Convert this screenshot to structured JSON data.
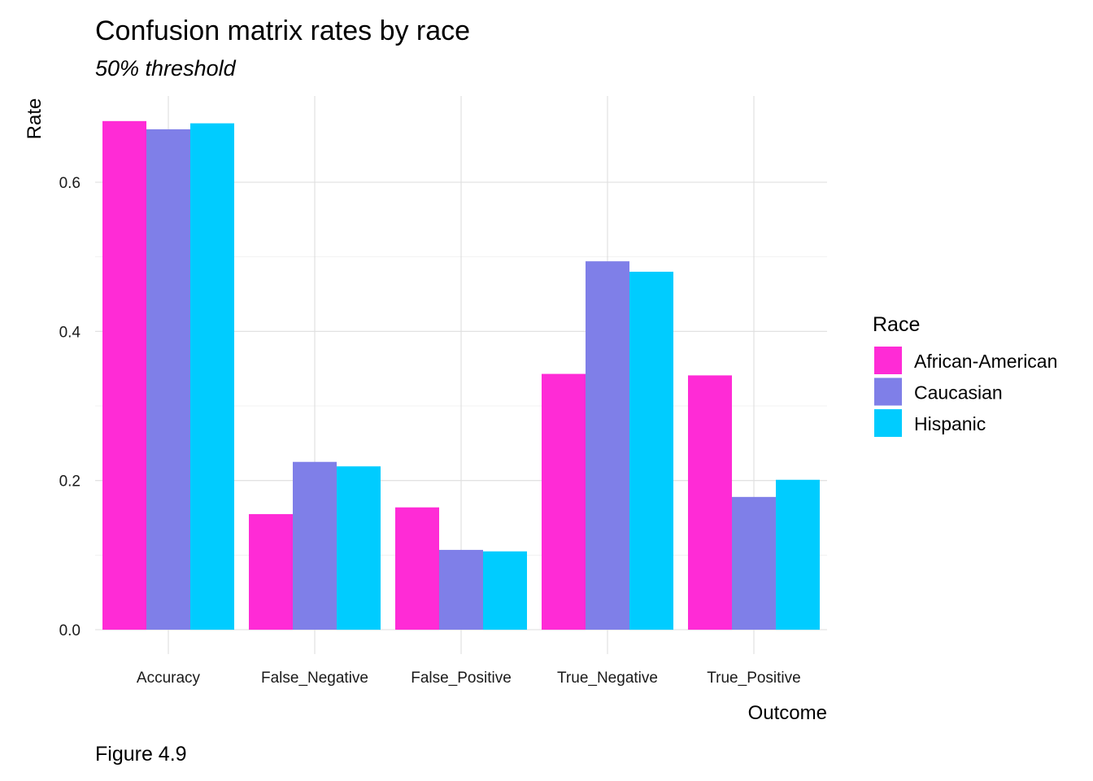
{
  "chart_data": {
    "type": "bar",
    "title": "Confusion matrix rates by race",
    "subtitle": "50% threshold",
    "xlabel": "Outcome",
    "ylabel": "Rate",
    "caption": "Figure 4.9",
    "categories": [
      "Accuracy",
      "False_Negative",
      "False_Positive",
      "True_Negative",
      "True_Positive"
    ],
    "series": [
      {
        "name": "African-American",
        "color": "#ff2bd6",
        "values": [
          0.682,
          0.155,
          0.164,
          0.343,
          0.341
        ]
      },
      {
        "name": "Caucasian",
        "color": "#7f7fe8",
        "values": [
          0.671,
          0.225,
          0.107,
          0.494,
          0.178
        ]
      },
      {
        "name": "Hispanic",
        "color": "#00ccff",
        "values": [
          0.679,
          0.219,
          0.105,
          0.48,
          0.201
        ]
      }
    ],
    "ylim": [
      0,
      0.7
    ],
    "yticks": [
      0.0,
      0.2,
      0.4,
      0.6
    ],
    "ytick_labels": [
      "0.0",
      "0.2",
      "0.4",
      "0.6"
    ],
    "grid": true,
    "legend": {
      "title": "Race",
      "position": "right"
    }
  }
}
